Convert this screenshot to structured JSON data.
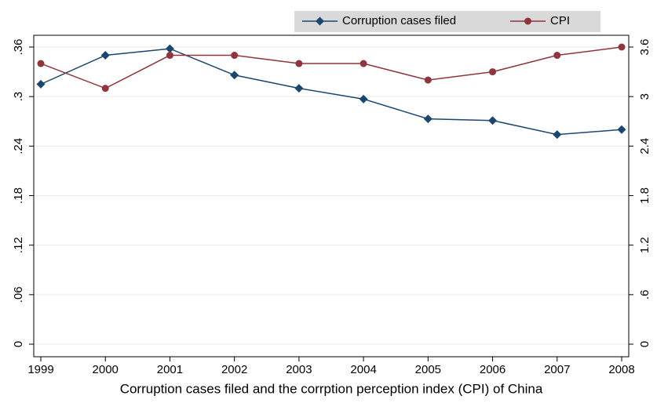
{
  "chart_data": {
    "type": "line",
    "title": "Corruption cases filed and the corrption perception index (CPI) of China",
    "x": [
      1999,
      2000,
      2001,
      2002,
      2003,
      2004,
      2005,
      2006,
      2007,
      2008
    ],
    "xlim": [
      1999,
      2008
    ],
    "xticks": [
      1999,
      2000,
      2001,
      2002,
      2003,
      2004,
      2005,
      2006,
      2007,
      2008
    ],
    "ylim": [
      0,
      0.36
    ],
    "yticks": [
      0,
      {
        "value": 0.06,
        "label": ".06"
      },
      {
        "value": 0.12,
        "label": ".12"
      },
      {
        "value": 0.18,
        "label": ".18"
      },
      {
        "value": 0.24,
        "label": ".24"
      },
      {
        "value": 0.3,
        "label": ".3"
      },
      {
        "value": 0.36,
        "label": ".36"
      }
    ],
    "y2lim": [
      0,
      3.6
    ],
    "y2ticks": [
      0,
      {
        "value": 0.6,
        "label": ".6"
      },
      1.2,
      1.8,
      2.4,
      3,
      3.6
    ],
    "grid": true,
    "legend": "top-right",
    "series": [
      {
        "name": "Corruption cases filed",
        "color": "#1a476f",
        "marker": "diamond",
        "values": [
          0.315,
          0.35,
          0.358,
          0.326,
          0.31,
          0.297,
          0.273,
          0.271,
          0.254,
          0.26
        ]
      },
      {
        "name": "CPI",
        "color": "#90353b",
        "marker": "circle",
        "axis": "y2",
        "values": [
          3.4,
          3.1,
          3.5,
          3.5,
          3.4,
          3.4,
          3.2,
          3.3,
          3.5,
          3.6
        ]
      }
    ]
  }
}
